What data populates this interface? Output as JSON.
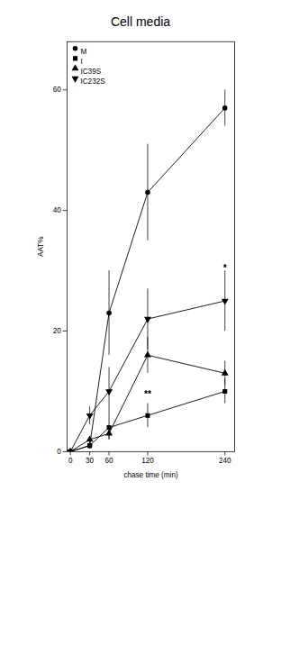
{
  "chart_data": {
    "type": "line",
    "title": "Cell media",
    "x_label": "chase time (min)",
    "y_label": "AAT%",
    "x": [
      0,
      30,
      60,
      120,
      240
    ],
    "series": [
      {
        "name": "M",
        "color": "#000000",
        "marker": "circle",
        "line_style": "solid",
        "values": [
          0,
          1,
          23,
          43,
          57
        ],
        "error": [
          0,
          0.5,
          7,
          8,
          3
        ]
      },
      {
        "name": "I",
        "color": "#000000",
        "marker": "square",
        "line_style": "solid",
        "values": [
          0,
          1,
          4,
          6,
          10
        ],
        "error": [
          0,
          0.5,
          2,
          2,
          2
        ]
      },
      {
        "name": "IC39S",
        "color": "#000000",
        "marker": "triangle",
        "line_style": "solid",
        "values": [
          0,
          2,
          3,
          16,
          13
        ],
        "error": [
          0,
          0.5,
          1,
          3,
          2
        ]
      },
      {
        "name": "IC232S",
        "color": "#000000",
        "marker": "triangle_down",
        "line_style": "solid",
        "values": [
          0,
          6,
          10,
          22,
          25
        ],
        "error": [
          0,
          1.5,
          4,
          5,
          5
        ]
      }
    ],
    "xlim": [
      -5,
      255
    ],
    "xticks": [
      0,
      30,
      60,
      120,
      240
    ],
    "ylim": [
      0,
      68
    ],
    "yticks": [
      0,
      20,
      40,
      60
    ],
    "grid": false,
    "legend": "upper left",
    "annotations": [
      {
        "x": 120,
        "y": 9,
        "text": "**"
      },
      {
        "x": 240,
        "y": 30,
        "text": "*"
      }
    ]
  }
}
